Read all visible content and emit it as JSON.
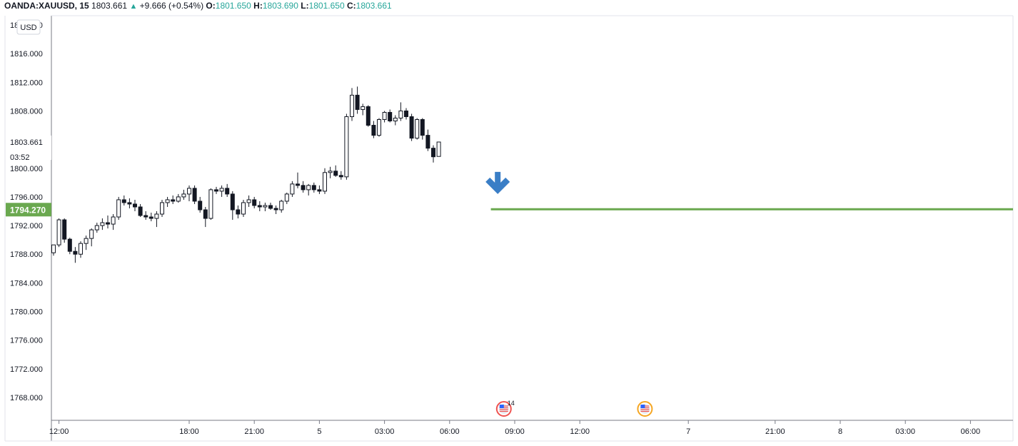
{
  "header": {
    "symbol": "OANDA:XAUUSD, 15",
    "last": "1803.661",
    "change_icon": "triangle-up-icon",
    "change": "+9.666 (+0.54%)",
    "o_label": "O:",
    "o_value": "1801.650",
    "h_label": "H:",
    "h_value": "1803.690",
    "l_label": "L:",
    "l_value": "1801.650",
    "c_label": "C:",
    "c_value": "1803.661"
  },
  "currency_button": "USD",
  "price_label": {
    "price": "1803.661",
    "countdown": "03:52"
  },
  "marker_label": "1794.270",
  "event_badges": [
    {
      "icon": "us-flag-icon",
      "count": "14",
      "ring": "#ef5350"
    },
    {
      "icon": "us-flag-icon",
      "count": "",
      "ring": "#f5a623"
    }
  ],
  "colors": {
    "up": "#ffffff",
    "down": "#131722",
    "line": "#6aa84f",
    "arrow": "#3a7ec6",
    "axis": "#787b86"
  },
  "chart_data": {
    "type": "candlestick",
    "y_ticks": [
      "1768.000",
      "1772.000",
      "1776.000",
      "1780.000",
      "1784.000",
      "1788.000",
      "1792.000",
      "1796.000",
      "1800.000",
      "1804.000",
      "1808.000",
      "1812.000",
      "1816.000",
      "1820.000"
    ],
    "ylim": [
      1765,
      1820.5
    ],
    "x_ticks": [
      {
        "label": "12:00",
        "bar": 1
      },
      {
        "label": "18:00",
        "bar": 25
      },
      {
        "label": "21:00",
        "bar": 37
      },
      {
        "label": "5",
        "bar": 49
      },
      {
        "label": "03:00",
        "bar": 61
      },
      {
        "label": "06:00",
        "bar": 73
      },
      {
        "label": "09:00",
        "bar": 85
      },
      {
        "label": "12:00",
        "bar": 97
      },
      {
        "label": "7",
        "bar": 117
      },
      {
        "label": "21:00",
        "bar": 133
      },
      {
        "label": "8",
        "bar": 145
      },
      {
        "label": "03:00",
        "bar": 157
      },
      {
        "label": "06:00",
        "bar": 169
      }
    ],
    "horizontal_line": {
      "price": 1794.27,
      "from_bar": 81
    },
    "signal": {
      "type": "down-arrow",
      "bar": 82,
      "price": 1798
    },
    "events": [
      {
        "bar": 83
      },
      {
        "bar": 109
      }
    ],
    "candles": [
      [
        1788.2,
        1789.3,
        1787.8,
        1789.3
      ],
      [
        1789.3,
        1793.0,
        1789.0,
        1792.8
      ],
      [
        1792.8,
        1793.0,
        1789.6,
        1790.1
      ],
      [
        1790.1,
        1790.3,
        1788.0,
        1788.4
      ],
      [
        1788.4,
        1789.0,
        1786.8,
        1788.0
      ],
      [
        1788.0,
        1789.8,
        1787.5,
        1789.5
      ],
      [
        1789.5,
        1790.6,
        1788.6,
        1790.2
      ],
      [
        1790.2,
        1791.6,
        1789.1,
        1791.4
      ],
      [
        1791.4,
        1792.4,
        1791.0,
        1792.0
      ],
      [
        1792.0,
        1793.0,
        1791.4,
        1792.4
      ],
      [
        1792.4,
        1793.4,
        1791.6,
        1792.2
      ],
      [
        1792.2,
        1793.6,
        1791.4,
        1793.2
      ],
      [
        1793.2,
        1796.0,
        1792.8,
        1795.6
      ],
      [
        1795.6,
        1796.2,
        1794.8,
        1795.2
      ],
      [
        1795.2,
        1795.8,
        1794.4,
        1795.0
      ],
      [
        1795.0,
        1795.6,
        1794.0,
        1794.6
      ],
      [
        1794.6,
        1795.0,
        1793.2,
        1793.4
      ],
      [
        1793.4,
        1794.0,
        1792.8,
        1793.2
      ],
      [
        1793.2,
        1793.8,
        1792.6,
        1793.0
      ],
      [
        1793.0,
        1794.0,
        1791.8,
        1793.6
      ],
      [
        1793.6,
        1795.6,
        1793.2,
        1795.2
      ],
      [
        1795.2,
        1796.0,
        1794.6,
        1795.6
      ],
      [
        1795.6,
        1796.2,
        1795.0,
        1795.4
      ],
      [
        1795.4,
        1796.4,
        1795.2,
        1796.0
      ],
      [
        1796.0,
        1797.0,
        1795.6,
        1796.4
      ],
      [
        1796.4,
        1797.6,
        1795.4,
        1797.2
      ],
      [
        1797.2,
        1797.6,
        1795.0,
        1795.4
      ],
      [
        1795.4,
        1796.0,
        1793.8,
        1794.2
      ],
      [
        1794.2,
        1794.6,
        1791.8,
        1793.0
      ],
      [
        1793.0,
        1797.2,
        1792.8,
        1797.0
      ],
      [
        1797.0,
        1797.4,
        1796.4,
        1796.8
      ],
      [
        1796.8,
        1797.6,
        1796.0,
        1797.2
      ],
      [
        1797.2,
        1797.8,
        1796.0,
        1796.4
      ],
      [
        1796.4,
        1796.8,
        1792.8,
        1794.2
      ],
      [
        1794.2,
        1794.8,
        1793.0,
        1793.6
      ],
      [
        1793.6,
        1795.6,
        1793.2,
        1795.2
      ],
      [
        1795.2,
        1796.2,
        1794.6,
        1795.6
      ],
      [
        1795.6,
        1796.0,
        1794.4,
        1794.8
      ],
      [
        1794.8,
        1795.4,
        1794.0,
        1794.6
      ],
      [
        1794.6,
        1795.2,
        1794.0,
        1794.8
      ],
      [
        1794.8,
        1795.2,
        1794.2,
        1794.4
      ],
      [
        1794.4,
        1794.8,
        1793.6,
        1794.2
      ],
      [
        1794.2,
        1795.6,
        1793.8,
        1795.4
      ],
      [
        1795.4,
        1796.6,
        1795.0,
        1796.4
      ],
      [
        1796.4,
        1798.2,
        1796.0,
        1797.8
      ],
      [
        1797.8,
        1799.4,
        1797.2,
        1797.6
      ],
      [
        1797.6,
        1798.2,
        1796.6,
        1797.0
      ],
      [
        1797.0,
        1797.8,
        1796.2,
        1797.6
      ],
      [
        1797.6,
        1798.0,
        1796.6,
        1797.0
      ],
      [
        1797.0,
        1797.6,
        1796.4,
        1796.8
      ],
      [
        1796.8,
        1800.0,
        1796.4,
        1799.4
      ],
      [
        1799.4,
        1800.2,
        1798.6,
        1799.6
      ],
      [
        1799.6,
        1800.4,
        1798.8,
        1799.0
      ],
      [
        1799.0,
        1799.6,
        1798.4,
        1798.8
      ],
      [
        1798.8,
        1807.6,
        1798.4,
        1807.2
      ],
      [
        1807.2,
        1811.2,
        1806.6,
        1810.2
      ],
      [
        1810.2,
        1811.4,
        1807.6,
        1808.2
      ],
      [
        1808.2,
        1809.0,
        1807.4,
        1808.6
      ],
      [
        1808.6,
        1808.8,
        1805.8,
        1806.0
      ],
      [
        1806.0,
        1806.6,
        1804.2,
        1804.6
      ],
      [
        1804.6,
        1807.0,
        1804.4,
        1806.8
      ],
      [
        1806.8,
        1808.0,
        1806.4,
        1807.8
      ],
      [
        1807.8,
        1808.2,
        1806.4,
        1806.6
      ],
      [
        1806.6,
        1807.4,
        1806.0,
        1807.0
      ],
      [
        1807.0,
        1809.2,
        1806.6,
        1808.0
      ],
      [
        1808.0,
        1808.4,
        1806.8,
        1807.2
      ],
      [
        1807.2,
        1807.6,
        1803.8,
        1804.2
      ],
      [
        1804.2,
        1807.0,
        1804.0,
        1806.8
      ],
      [
        1806.8,
        1807.0,
        1804.0,
        1804.6
      ],
      [
        1804.6,
        1805.4,
        1802.4,
        1802.8
      ],
      [
        1802.8,
        1803.2,
        1800.8,
        1801.6
      ],
      [
        1801.65,
        1803.69,
        1801.65,
        1803.661
      ]
    ]
  }
}
